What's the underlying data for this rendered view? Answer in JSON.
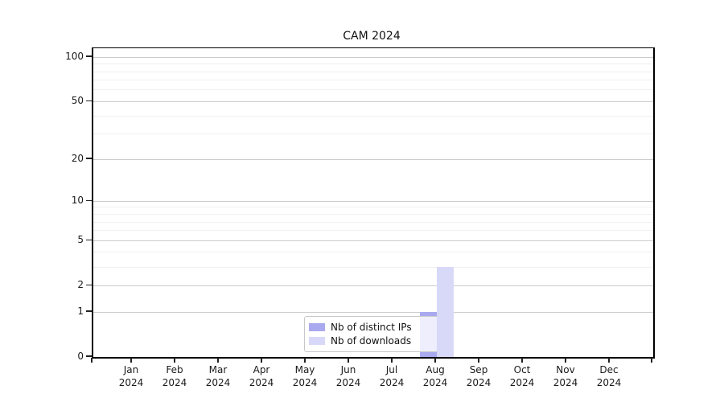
{
  "chart_data": {
    "type": "bar",
    "title": "CAM 2024",
    "categories": [
      "Jan 2024",
      "Feb 2024",
      "Mar 2024",
      "Apr 2024",
      "May 2024",
      "Jun 2024",
      "Jul 2024",
      "Aug 2024",
      "Sep 2024",
      "Oct 2024",
      "Nov 2024",
      "Dec 2024"
    ],
    "series": [
      {
        "name": "Nb of distinct IPs",
        "color": "#a9a9ef",
        "values": [
          0,
          0,
          0,
          0,
          0,
          0,
          0,
          1,
          0,
          0,
          0,
          0
        ]
      },
      {
        "name": "Nb of downloads",
        "color": "#d8d8f8",
        "values": [
          0,
          0,
          0,
          0,
          0,
          0,
          0,
          3,
          0,
          0,
          0,
          0
        ]
      }
    ],
    "yscale": "log10(1+v)",
    "ylim": [
      0,
      115
    ],
    "y_major_ticks": [
      0,
      1,
      2,
      5,
      10,
      20,
      50,
      100
    ],
    "y_minor_gridlines": [
      3,
      4,
      6,
      7,
      8,
      9,
      30,
      40,
      60,
      70,
      80,
      90
    ],
    "grid": "horizontal",
    "legend_position": "inside-bottom-center"
  },
  "colors": {
    "major_grid": "#cccccc",
    "minor_grid": "#f0f0f0",
    "spine": "#000000",
    "text": "#1a1a1a",
    "background": "#ffffff"
  }
}
